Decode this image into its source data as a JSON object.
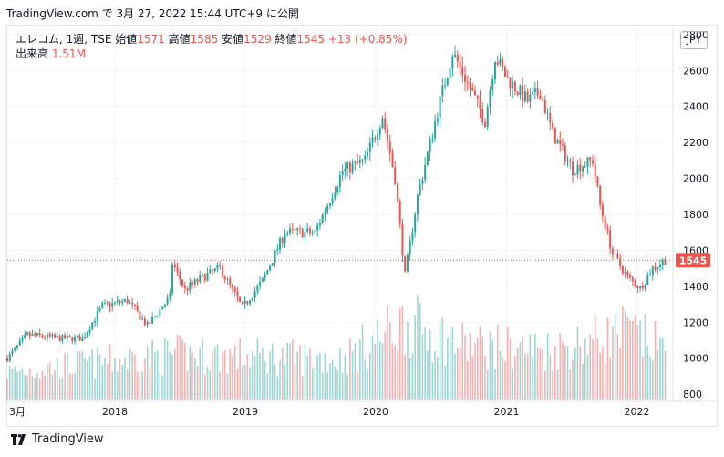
{
  "header": {
    "title": "TradingView.com で 3月 27, 2022 15:44 UTC+9 に公開"
  },
  "legend": {
    "symbol": "エレコム, 1週, TSE",
    "open_label": "始値",
    "open_value": "1571",
    "high_label": "高値",
    "high_value": "1585",
    "low_label": "安値",
    "low_value": "1529",
    "close_label": "終値",
    "close_value": "1545",
    "change": "+13 (+0.85%)",
    "volume_label": "出来高",
    "volume_value": "1.51M"
  },
  "currency": "JPY",
  "last_price_label": "1545",
  "footer": {
    "brand": "TradingView"
  },
  "colors": {
    "up": "#26a69a",
    "down": "#ef5350",
    "grid": "#f0f3fa"
  },
  "chart_data": {
    "type": "candlestick",
    "x_tick_labels": [
      "3月",
      "2018",
      "2019",
      "2020",
      "2021",
      "2022"
    ],
    "x_tick_dates": [
      "2017-03",
      "2018-01",
      "2019-01",
      "2020-01",
      "2021-01",
      "2022-01"
    ],
    "y_ticks": [
      800,
      1000,
      1200,
      1400,
      1600,
      1800,
      2000,
      2200,
      2400,
      2600,
      2800
    ],
    "y_range": [
      760,
      2850
    ],
    "last_price": 1545,
    "price_path": [
      [
        "2017-03-06",
        1000
      ],
      [
        "2017-05-01",
        1130
      ],
      [
        "2017-08-07",
        1110
      ],
      [
        "2017-10-02",
        1110
      ],
      [
        "2017-11-27",
        1290
      ],
      [
        "2018-02-05",
        1320
      ],
      [
        "2018-04-02",
        1180
      ],
      [
        "2018-06-04",
        1340
      ],
      [
        "2018-06-11",
        1530
      ],
      [
        "2018-07-16",
        1380
      ],
      [
        "2018-09-03",
        1450
      ],
      [
        "2018-10-22",
        1500
      ],
      [
        "2018-12-24",
        1280
      ],
      [
        "2019-02-18",
        1430
      ],
      [
        "2019-04-22",
        1700
      ],
      [
        "2019-07-15",
        1700
      ],
      [
        "2019-09-30",
        2040
      ],
      [
        "2019-12-02",
        2100
      ],
      [
        "2020-01-20",
        2350
      ],
      [
        "2020-02-24",
        2000
      ],
      [
        "2020-03-23",
        1460
      ],
      [
        "2020-04-27",
        1900
      ],
      [
        "2020-06-29",
        2430
      ],
      [
        "2020-08-03",
        2700
      ],
      [
        "2020-09-07",
        2560
      ],
      [
        "2020-11-02",
        2320
      ],
      [
        "2020-11-30",
        2680
      ],
      [
        "2021-01-04",
        2550
      ],
      [
        "2021-03-01",
        2430
      ],
      [
        "2021-04-05",
        2480
      ],
      [
        "2021-05-10",
        2250
      ],
      [
        "2021-07-05",
        2050
      ],
      [
        "2021-08-30",
        2100
      ],
      [
        "2021-09-20",
        1850
      ],
      [
        "2021-10-25",
        1580
      ],
      [
        "2021-12-06",
        1450
      ],
      [
        "2022-01-10",
        1390
      ],
      [
        "2022-02-14",
        1500
      ],
      [
        "2022-03-21",
        1545
      ]
    ],
    "volume_path": [
      [
        "2017-03-06",
        0.3
      ],
      [
        "2018-06-11",
        0.5
      ],
      [
        "2019-09-30",
        0.45
      ],
      [
        "2020-03-23",
        0.85
      ],
      [
        "2020-09-07",
        0.6
      ],
      [
        "2021-05-10",
        0.55
      ],
      [
        "2021-12-06",
        0.75
      ],
      [
        "2022-03-21",
        0.55
      ]
    ]
  }
}
